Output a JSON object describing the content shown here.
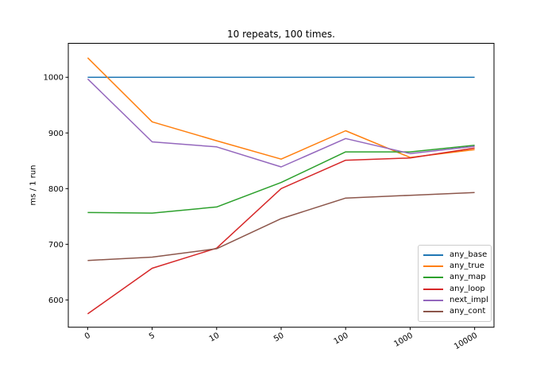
{
  "chart_data": {
    "type": "line",
    "title": "10 repeats, 100 times.",
    "xlabel": "",
    "ylabel": "ms / 1 run",
    "categories": [
      "0",
      "5",
      "10",
      "50",
      "100",
      "1000",
      "10000"
    ],
    "x_axis_type": "categorical-even-spacing",
    "x_tick_rotation_deg": 30,
    "yticks": [
      600,
      700,
      800,
      900,
      1000
    ],
    "ylim": [
      551,
      1061
    ],
    "grid": false,
    "legend_position": "lower right",
    "series": [
      {
        "name": "any_base",
        "color": "#1f77b4",
        "values": [
          1000,
          1000,
          1000,
          1000,
          1000,
          1000,
          1000
        ]
      },
      {
        "name": "any_true",
        "color": "#ff7f0e",
        "values": [
          1035,
          920,
          886,
          853,
          904,
          856,
          870
        ]
      },
      {
        "name": "any_map",
        "color": "#2ca02c",
        "values": [
          757,
          756,
          767,
          811,
          866,
          866,
          878
        ]
      },
      {
        "name": "any_loop",
        "color": "#d62728",
        "values": [
          575,
          657,
          693,
          800,
          851,
          855,
          873
        ]
      },
      {
        "name": "next_impl",
        "color": "#9467bd",
        "values": [
          997,
          884,
          875,
          839,
          890,
          863,
          876
        ]
      },
      {
        "name": "any_cont",
        "color": "#8c564b",
        "values": [
          671,
          677,
          692,
          746,
          783,
          788,
          793
        ]
      }
    ]
  }
}
